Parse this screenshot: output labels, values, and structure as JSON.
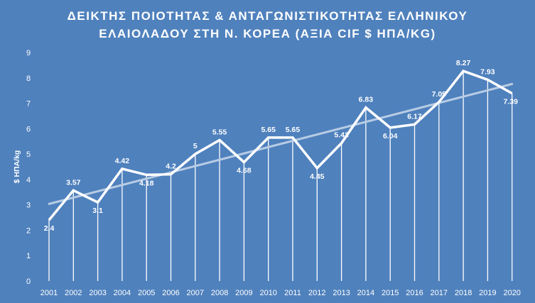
{
  "chart_data": {
    "type": "line",
    "title_line1": "ΔΕΙΚΤΗΣ ΠΟΙΟΤΗΤΑΣ & ΑΝΤΑΓΩΝΙΣΤΙΚΟΤΗΤΑΣ ΕΛΛΗΝΙΚΟΥ",
    "title_line2": "ΕΛΑΙΟΛΑΔΟΥ ΣΤΗ Ν. ΚΟΡΕΑ (ΑΞΙΑ CIF $ ΗΠΑ/KG)",
    "ylabel": "$ ΗΠΑ/kg",
    "xlabel": "",
    "ylim": [
      0,
      9
    ],
    "yticks": [
      0,
      1,
      2,
      3,
      4,
      5,
      6,
      7,
      8,
      9
    ],
    "categories": [
      "2001",
      "2002",
      "2003",
      "2004",
      "2005",
      "2006",
      "2007",
      "2008",
      "2009",
      "2010",
      "2011",
      "2012",
      "2013",
      "2014",
      "2015",
      "2016",
      "2017",
      "2018",
      "2019",
      "2020"
    ],
    "values": [
      2.4,
      3.57,
      3.1,
      4.42,
      4.18,
      4.2,
      5,
      5.55,
      4.68,
      5.65,
      5.65,
      4.45,
      5.43,
      6.83,
      6.04,
      6.17,
      7.05,
      8.27,
      7.93,
      7.39
    ],
    "data_labels": [
      "2.4",
      "3.57",
      "3.1",
      "4.42",
      "4.18",
      "4.2",
      "5",
      "5.55",
      "4.68",
      "5.65",
      "5.65",
      "4.45",
      "5.43",
      "6.83",
      "6.04",
      "6.17",
      "7.05",
      "8.27",
      "7.93",
      "7.39"
    ],
    "trendline": true,
    "drop_lines": true,
    "grid": false,
    "legend": "none",
    "colors": {
      "background": "#4f81bd",
      "line": "#ffffff",
      "trend": "#b8cce4",
      "text": "#ffffff"
    }
  }
}
